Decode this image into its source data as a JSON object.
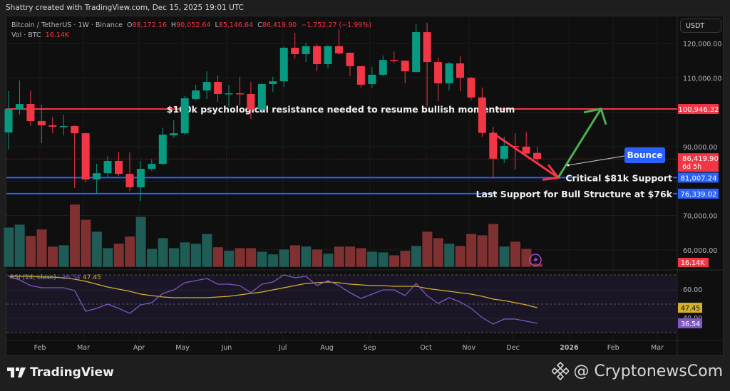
{
  "credit": "Shattry created with TradingView.com, Dec 15, 2025 19:01 UTC",
  "legend": {
    "symbol": "Bitcoin / TetherUS · 1W · Binance",
    "o_label": "O",
    "o": "88,172.16",
    "h_label": "H",
    "h": "90,052.64",
    "l_label": "L",
    "l": "85,146.64",
    "c_label": "C",
    "c": "86,419.90",
    "change": "−1,752.27 (−1.99%)",
    "vol_label": "Vol · BTC",
    "vol": "16.14K"
  },
  "currency_button": "USDT",
  "colors": {
    "up": "#089981",
    "down": "#f23645",
    "vol_up": "#1e5c55",
    "vol_down": "#7f3131",
    "rsi": "#7e57c2",
    "rsi_ma": "#d4b02c",
    "support": "#2962ff",
    "resistance": "#f23645",
    "arrow_down": "#f23645",
    "arrow_up": "#4caf50"
  },
  "chart_data": {
    "type": "candlestick",
    "interval": "1W",
    "price_axis": {
      "ticks": [
        "120,000.00",
        "110,000.00",
        "90,000.00",
        "70,000.00",
        "60,000.00"
      ],
      "tick_values": [
        120000,
        110000,
        90000,
        70000,
        60000
      ]
    },
    "time_axis": {
      "ticks": [
        "Feb",
        "Mar",
        "Apr",
        "May",
        "Jun",
        "Jul",
        "Aug",
        "Sep",
        "Oct",
        "Nov",
        "Dec",
        "2026",
        "Feb",
        "Mar"
      ]
    },
    "candles": [
      [
        94125,
        106130,
        89150,
        100956
      ],
      [
        100956,
        109240,
        99300,
        102400
      ],
      [
        102400,
        106340,
        96000,
        97440
      ],
      [
        97440,
        102200,
        91020,
        96200
      ],
      [
        96200,
        98680,
        93900,
        95800
      ],
      [
        95800,
        99300,
        93300,
        96000
      ],
      [
        96000,
        96200,
        78000,
        93900
      ],
      [
        93900,
        94100,
        79600,
        80460
      ],
      [
        80460,
        85000,
        76300,
        82300
      ],
      [
        82300,
        87300,
        80900,
        85850
      ],
      [
        85850,
        88500,
        81500,
        82100
      ],
      [
        82100,
        88300,
        77000,
        78200
      ],
      [
        78200,
        85850,
        74250,
        83570
      ],
      [
        83570,
        86250,
        82950,
        85000
      ],
      [
        85000,
        95570,
        84600,
        93500
      ],
      [
        93300,
        97650,
        92500,
        93900
      ],
      [
        93900,
        104700,
        93400,
        104060
      ],
      [
        103850,
        108000,
        103500,
        106340
      ],
      [
        106340,
        111900,
        103850,
        108820
      ],
      [
        108820,
        110680,
        103000,
        105300
      ],
      [
        105300,
        108000,
        101600,
        105500
      ],
      [
        105500,
        110300,
        102000,
        105300
      ],
      [
        105300,
        108800,
        98000,
        100750
      ],
      [
        100750,
        108400,
        100000,
        108200
      ],
      [
        108200,
        110300,
        105900,
        109000
      ],
      [
        109000,
        119200,
        107400,
        118750
      ],
      [
        118750,
        123100,
        115600,
        116900
      ],
      [
        116900,
        120200,
        114600,
        119200
      ],
      [
        119200,
        119800,
        112000,
        114000
      ],
      [
        114000,
        119500,
        112800,
        119200
      ],
      [
        119200,
        124100,
        116700,
        117100
      ],
      [
        117300,
        117300,
        110500,
        113400
      ],
      [
        113400,
        113400,
        107200,
        108000
      ],
      [
        108200,
        113200,
        107000,
        110900
      ],
      [
        110900,
        116500,
        110500,
        115200
      ],
      [
        115200,
        117700,
        114200,
        115000
      ],
      [
        115000,
        115000,
        108400,
        111900
      ],
      [
        111700,
        125600,
        111500,
        123300
      ],
      [
        123300,
        126000,
        101600,
        114600
      ],
      [
        114600,
        115900,
        103200,
        108400
      ],
      [
        108400,
        114600,
        106300,
        114200
      ],
      [
        114200,
        116300,
        106100,
        110000
      ],
      [
        110000,
        110300,
        103500,
        104300
      ],
      [
        104300,
        107200,
        92900,
        94000
      ],
      [
        94000,
        95800,
        80700,
        86500
      ],
      [
        86500,
        92900,
        85200,
        90200
      ],
      [
        90200,
        93900,
        83400,
        90000
      ],
      [
        90000,
        94300,
        87800,
        88000
      ],
      [
        88172.16,
        90052.64,
        85146.64,
        86419.9
      ]
    ],
    "volume_k": [
      179,
      192,
      141,
      170,
      93,
      99,
      282,
      214,
      160,
      86,
      106,
      138,
      227,
      83,
      131,
      86,
      112,
      106,
      150,
      90,
      74,
      86,
      86,
      70,
      58,
      80,
      99,
      93,
      80,
      61,
      93,
      93,
      86,
      70,
      67,
      54,
      74,
      96,
      160,
      131,
      106,
      96,
      150,
      144,
      195,
      93,
      115,
      83,
      16.14
    ],
    "rsi": {
      "label": "RSI (14, close)",
      "value": "36.54",
      "ma_value": "47.45",
      "ticks": [
        "60.00",
        "40.00"
      ],
      "values": [
        69.5,
        67,
        63,
        61.5,
        61.5,
        61.5,
        59.5,
        45,
        47,
        50,
        47,
        43.5,
        49.5,
        51,
        57.5,
        60,
        65,
        66.5,
        68,
        64,
        64,
        63,
        58,
        64,
        65.5,
        70.5,
        68.5,
        69.5,
        63,
        66.5,
        63,
        58,
        54,
        57,
        60,
        60,
        56,
        64.5,
        56,
        50.5,
        54.5,
        51.5,
        47,
        40.5,
        36,
        39.5,
        39.5,
        38,
        36.54
      ],
      "ma": [
        69.5,
        69.5,
        69.5,
        69,
        69,
        68.5,
        67.5,
        66,
        64,
        62,
        60.5,
        59,
        57,
        56,
        55,
        54.5,
        54.5,
        54.5,
        54.5,
        55,
        55.5,
        56.5,
        57.5,
        58.5,
        60,
        61.5,
        63,
        64.5,
        65,
        65.5,
        65,
        64,
        63.5,
        63,
        63,
        62.5,
        62.5,
        62.5,
        61,
        60,
        59,
        58,
        57,
        55.5,
        53.5,
        52.5,
        51,
        49.5,
        47.45
      ]
    },
    "levels": [
      {
        "price": 100946.32,
        "label": "100,946.32",
        "text": "$100k psychological resistance needed to resume bullish momentum",
        "kind": "resistance"
      },
      {
        "price": 81007.24,
        "label": "81,007.24",
        "text": "Critical $81k Support",
        "kind": "support"
      },
      {
        "price": 76339.02,
        "label": "76,339.02",
        "text": "Last Support for Bull Structure at $76k",
        "kind": "support"
      }
    ],
    "current_price": {
      "label": "86,419.90",
      "countdown": "6d 5h",
      "price": 86419.9
    },
    "volume_label": "16.14K",
    "callout": "Bounce",
    "projection": {
      "down_to_price": 81007.24,
      "up_to_price": 101000
    }
  },
  "footer": {
    "brand": "TradingView",
    "watermark": "@ CryptonewsCom"
  }
}
